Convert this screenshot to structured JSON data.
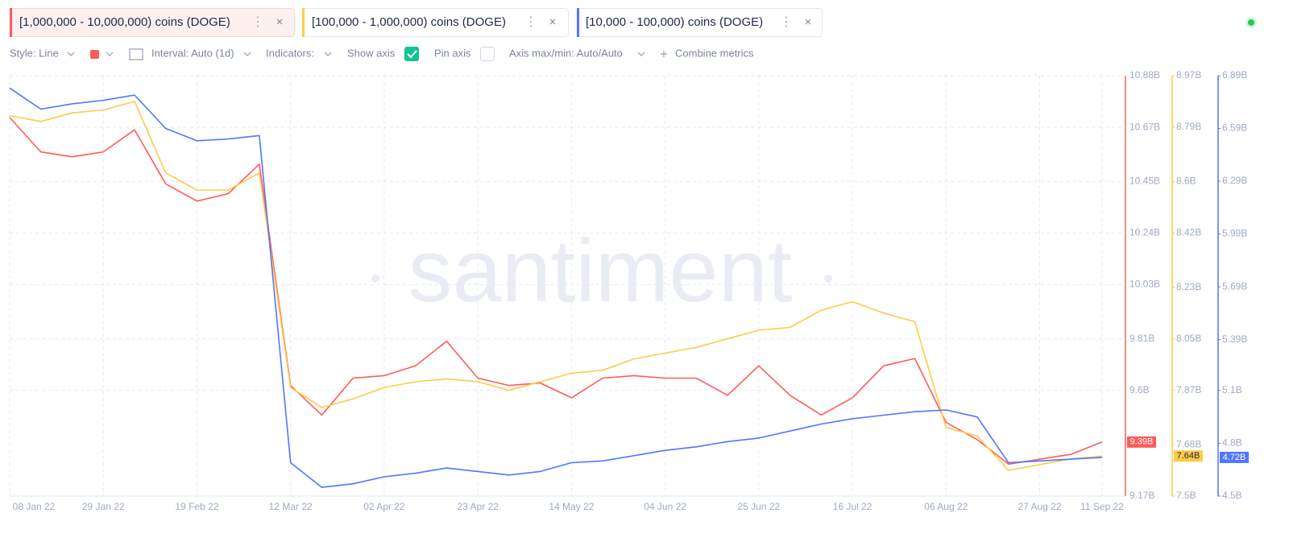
{
  "tabs": [
    "[1,000,000 - 10,000,000) coins (DOGE)",
    "[100,000 - 1,000,000) coins (DOGE)",
    "[10,000 - 100,000) coins (DOGE)"
  ],
  "toolbar": {
    "style": "Style: Line",
    "interval": "Interval: Auto (1d)",
    "indicators": "Indicators:",
    "show_axis": "Show axis",
    "pin_axis": "Pin axis",
    "axis_max_min": "Axis max/min: Auto/Auto",
    "combine": "Combine metrics"
  },
  "watermark": "santiment",
  "chart_data": {
    "type": "line",
    "categories": [
      "08 Jan 22",
      null,
      null,
      "29 Jan 22",
      null,
      null,
      "19 Feb 22",
      null,
      null,
      "12 Mar 22",
      null,
      null,
      "02 Apr 22",
      null,
      null,
      "23 Apr 22",
      null,
      null,
      "14 May 22",
      null,
      null,
      "04 Jun 22",
      null,
      null,
      "25 Jun 22",
      null,
      null,
      "16 Jul 22",
      null,
      null,
      "06 Aug 22",
      null,
      null,
      "27 Aug 22",
      null,
      "11 Sep 22"
    ],
    "ylim": [
      9.17,
      10.88
    ],
    "yticks": [
      {
        "value": 9.17,
        "label": "9.17B"
      },
      {
        "value": 9.6,
        "label": "9.6B"
      },
      {
        "value": 9.81,
        "label": "9.81B"
      },
      {
        "value": 10.03,
        "label": "10.03B"
      },
      {
        "value": 10.24,
        "label": "10.24B"
      },
      {
        "value": 10.45,
        "label": "10.45B"
      },
      {
        "value": 10.67,
        "label": "10.67B"
      },
      {
        "value": 10.88,
        "label": "10.88B"
      }
    ],
    "y2lim": [
      7.5,
      8.97
    ],
    "y2ticks": [
      {
        "value": 7.5,
        "label": "7.5B"
      },
      {
        "value": 7.68,
        "label": "7.68B"
      },
      {
        "value": 7.87,
        "label": "7.87B"
      },
      {
        "value": 8.05,
        "label": "8.05B"
      },
      {
        "value": 8.23,
        "label": "8.23B"
      },
      {
        "value": 8.42,
        "label": "8.42B"
      },
      {
        "value": 8.6,
        "label": "8.6B"
      },
      {
        "value": 8.79,
        "label": "8.79B"
      },
      {
        "value": 8.97,
        "label": "8.97B"
      }
    ],
    "y3lim": [
      4.5,
      6.89
    ],
    "y3ticks": [
      {
        "value": 4.5,
        "label": "4.5B"
      },
      {
        "value": 4.8,
        "label": "4.8B"
      },
      {
        "value": 5.1,
        "label": "5.1B"
      },
      {
        "value": 5.39,
        "label": "5.39B"
      },
      {
        "value": 5.69,
        "label": "5.69B"
      },
      {
        "value": 5.99,
        "label": "5.99B"
      },
      {
        "value": 6.29,
        "label": "6.29B"
      },
      {
        "value": 6.59,
        "label": "6.59B"
      },
      {
        "value": 6.89,
        "label": "6.89B"
      }
    ],
    "grid": true,
    "series": [
      {
        "name": "[1,000,000 - 10,000,000) coins (DOGE)",
        "color": "#ff5b5b",
        "axis": "y",
        "values": [
          10.71,
          10.57,
          10.55,
          10.57,
          10.66,
          10.44,
          10.37,
          10.4,
          10.52,
          9.62,
          9.5,
          9.65,
          9.66,
          9.7,
          9.8,
          9.65,
          9.62,
          9.63,
          9.57,
          9.65,
          9.66,
          9.65,
          9.65,
          9.58,
          9.7,
          9.58,
          9.5,
          9.57,
          9.7,
          9.73,
          9.47,
          9.4,
          9.3,
          9.32,
          9.34,
          9.39
        ],
        "value_labels": [
          null,
          null,
          null,
          null,
          null,
          null,
          null,
          null,
          null,
          null,
          null,
          null,
          null,
          null,
          null,
          null,
          null,
          null,
          null,
          null,
          null,
          null,
          null,
          null,
          null,
          null,
          null,
          null,
          null,
          null,
          null,
          null,
          null,
          null,
          null,
          "9.39B"
        ]
      },
      {
        "name": "[100,000 - 1,000,000) coins (DOGE)",
        "color": "#ffcb47",
        "axis": "y2",
        "values": [
          8.83,
          8.81,
          8.84,
          8.85,
          8.88,
          8.63,
          8.57,
          8.57,
          8.63,
          7.88,
          7.81,
          7.84,
          7.88,
          7.9,
          7.91,
          7.9,
          7.87,
          7.9,
          7.93,
          7.94,
          7.98,
          8.0,
          8.02,
          8.05,
          8.08,
          8.09,
          8.15,
          8.18,
          8.14,
          8.11,
          7.74,
          7.71,
          7.59,
          7.61,
          7.63,
          7.64
        ],
        "value_labels": [
          null,
          null,
          null,
          null,
          null,
          null,
          null,
          null,
          null,
          null,
          null,
          null,
          null,
          null,
          null,
          null,
          null,
          null,
          null,
          null,
          null,
          null,
          null,
          null,
          null,
          null,
          null,
          null,
          null,
          null,
          null,
          null,
          null,
          null,
          null,
          "7.64B"
        ]
      },
      {
        "name": "[10,000 - 100,000) coins (DOGE)",
        "color": "#5275ff",
        "axis": "y3",
        "values": [
          6.82,
          6.7,
          6.73,
          6.75,
          6.78,
          6.59,
          6.52,
          6.53,
          6.55,
          4.69,
          4.55,
          4.57,
          4.61,
          4.63,
          4.66,
          4.64,
          4.62,
          4.64,
          4.69,
          4.7,
          4.73,
          4.76,
          4.78,
          4.81,
          4.83,
          4.87,
          4.91,
          4.94,
          4.96,
          4.98,
          4.99,
          4.95,
          4.69,
          4.7,
          4.71,
          4.72
        ],
        "value_labels": [
          null,
          null,
          null,
          null,
          null,
          null,
          null,
          null,
          null,
          null,
          null,
          null,
          null,
          null,
          null,
          null,
          null,
          null,
          null,
          null,
          null,
          null,
          null,
          null,
          null,
          null,
          null,
          null,
          null,
          null,
          null,
          null,
          null,
          null,
          null,
          "4.72B"
        ]
      }
    ]
  }
}
